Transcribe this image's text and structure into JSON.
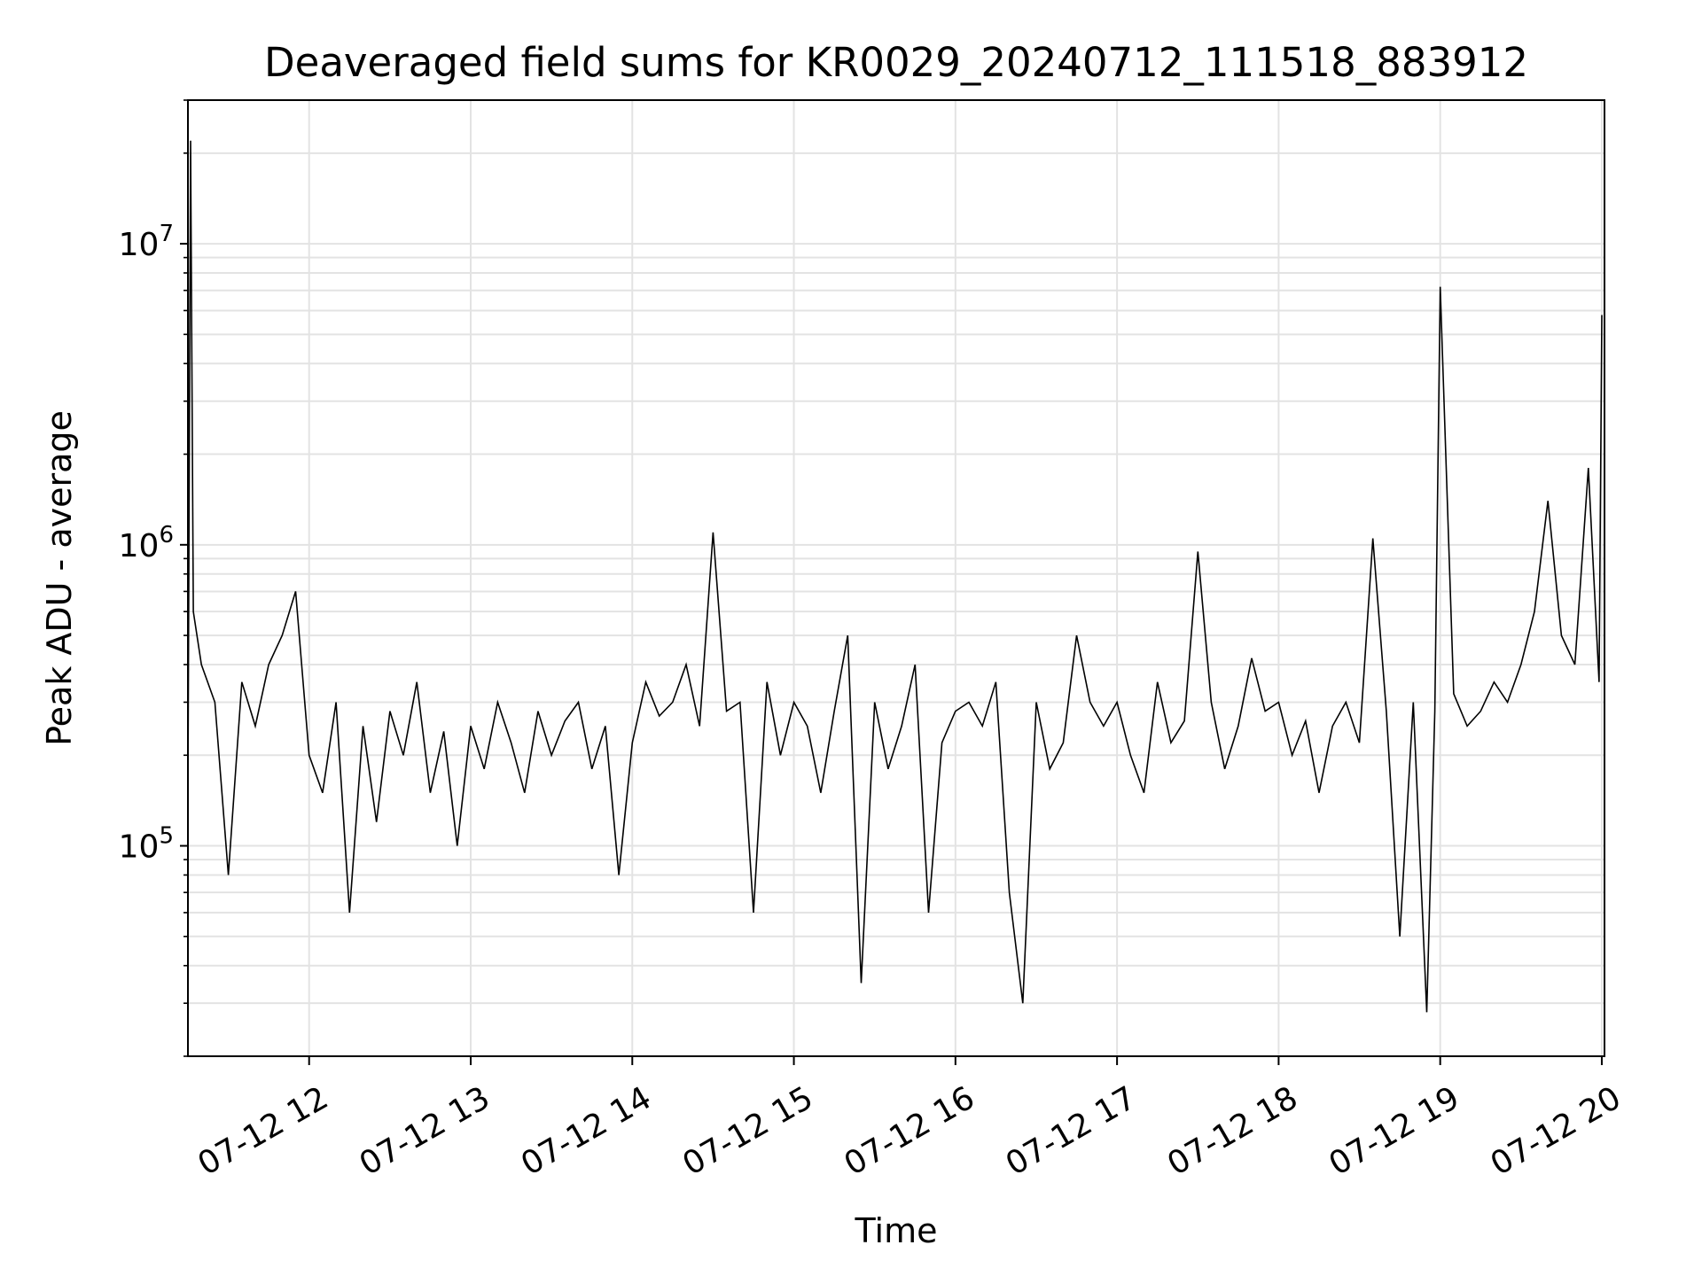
{
  "chart_data": {
    "type": "line",
    "title": "Deaveraged field sums for KR0029_20240712_111518_883912",
    "xlabel": "Time",
    "ylabel": "Peak ADU - average",
    "y_scale": "log",
    "ylim": [
      20000,
      30000000
    ],
    "xlim": [
      "2024-07-12 11:15",
      "2024-07-12 20:01"
    ],
    "grid": true,
    "x_ticks": [
      {
        "time": "2024-07-12 12:00",
        "label": "07-12 12"
      },
      {
        "time": "2024-07-12 13:00",
        "label": "07-12 13"
      },
      {
        "time": "2024-07-12 14:00",
        "label": "07-12 14"
      },
      {
        "time": "2024-07-12 15:00",
        "label": "07-12 15"
      },
      {
        "time": "2024-07-12 16:00",
        "label": "07-12 16"
      },
      {
        "time": "2024-07-12 17:00",
        "label": "07-12 17"
      },
      {
        "time": "2024-07-12 18:00",
        "label": "07-12 18"
      },
      {
        "time": "2024-07-12 19:00",
        "label": "07-12 19"
      },
      {
        "time": "2024-07-12 20:00",
        "label": "07-12 20"
      }
    ],
    "y_ticks": [
      {
        "value": 100000,
        "base": "10",
        "exp": "5"
      },
      {
        "value": 1000000,
        "base": "10",
        "exp": "6"
      },
      {
        "value": 10000000,
        "base": "10",
        "exp": "7"
      }
    ],
    "series": [
      {
        "color": "#000000",
        "x": [
          "2024-07-12 11:15",
          "2024-07-12 11:16",
          "2024-07-12 11:17",
          "2024-07-12 11:20",
          "2024-07-12 11:25",
          "2024-07-12 11:30",
          "2024-07-12 11:35",
          "2024-07-12 11:40",
          "2024-07-12 11:45",
          "2024-07-12 11:50",
          "2024-07-12 11:55",
          "2024-07-12 12:00",
          "2024-07-12 12:05",
          "2024-07-12 12:10",
          "2024-07-12 12:15",
          "2024-07-12 12:20",
          "2024-07-12 12:25",
          "2024-07-12 12:30",
          "2024-07-12 12:35",
          "2024-07-12 12:40",
          "2024-07-12 12:45",
          "2024-07-12 12:50",
          "2024-07-12 12:55",
          "2024-07-12 13:00",
          "2024-07-12 13:05",
          "2024-07-12 13:10",
          "2024-07-12 13:15",
          "2024-07-12 13:20",
          "2024-07-12 13:25",
          "2024-07-12 13:30",
          "2024-07-12 13:35",
          "2024-07-12 13:40",
          "2024-07-12 13:45",
          "2024-07-12 13:50",
          "2024-07-12 13:55",
          "2024-07-12 14:00",
          "2024-07-12 14:05",
          "2024-07-12 14:10",
          "2024-07-12 14:15",
          "2024-07-12 14:20",
          "2024-07-12 14:25",
          "2024-07-12 14:30",
          "2024-07-12 14:35",
          "2024-07-12 14:40",
          "2024-07-12 14:45",
          "2024-07-12 14:50",
          "2024-07-12 14:55",
          "2024-07-12 15:00",
          "2024-07-12 15:05",
          "2024-07-12 15:10",
          "2024-07-12 15:15",
          "2024-07-12 15:20",
          "2024-07-12 15:25",
          "2024-07-12 15:30",
          "2024-07-12 15:35",
          "2024-07-12 15:40",
          "2024-07-12 15:45",
          "2024-07-12 15:50",
          "2024-07-12 15:55",
          "2024-07-12 16:00",
          "2024-07-12 16:05",
          "2024-07-12 16:10",
          "2024-07-12 16:15",
          "2024-07-12 16:20",
          "2024-07-12 16:25",
          "2024-07-12 16:30",
          "2024-07-12 16:35",
          "2024-07-12 16:40",
          "2024-07-12 16:45",
          "2024-07-12 16:50",
          "2024-07-12 16:55",
          "2024-07-12 17:00",
          "2024-07-12 17:05",
          "2024-07-12 17:10",
          "2024-07-12 17:15",
          "2024-07-12 17:20",
          "2024-07-12 17:25",
          "2024-07-12 17:30",
          "2024-07-12 17:35",
          "2024-07-12 17:40",
          "2024-07-12 17:45",
          "2024-07-12 17:50",
          "2024-07-12 17:55",
          "2024-07-12 18:00",
          "2024-07-12 18:05",
          "2024-07-12 18:10",
          "2024-07-12 18:15",
          "2024-07-12 18:20",
          "2024-07-12 18:25",
          "2024-07-12 18:30",
          "2024-07-12 18:35",
          "2024-07-12 18:40",
          "2024-07-12 18:45",
          "2024-07-12 18:50",
          "2024-07-12 18:55",
          "2024-07-12 18:58",
          "2024-07-12 19:00",
          "2024-07-12 19:05",
          "2024-07-12 19:10",
          "2024-07-12 19:15",
          "2024-07-12 19:20",
          "2024-07-12 19:25",
          "2024-07-12 19:30",
          "2024-07-12 19:35",
          "2024-07-12 19:40",
          "2024-07-12 19:45",
          "2024-07-12 19:50",
          "2024-07-12 19:55",
          "2024-07-12 19:59",
          "2024-07-12 20:00"
        ],
        "y": [
          150000,
          22000000,
          600000,
          400000,
          300000,
          80000,
          350000,
          250000,
          400000,
          500000,
          700000,
          200000,
          150000,
          300000,
          60000,
          250000,
          120000,
          280000,
          200000,
          350000,
          150000,
          240000,
          100000,
          250000,
          180000,
          300000,
          220000,
          150000,
          280000,
          200000,
          260000,
          300000,
          180000,
          250000,
          80000,
          220000,
          350000,
          270000,
          300000,
          400000,
          250000,
          1100000,
          280000,
          300000,
          60000,
          350000,
          200000,
          300000,
          250000,
          150000,
          280000,
          500000,
          35000,
          300000,
          180000,
          250000,
          400000,
          60000,
          220000,
          280000,
          300000,
          250000,
          350000,
          70000,
          30000,
          300000,
          180000,
          220000,
          500000,
          300000,
          250000,
          300000,
          200000,
          150000,
          350000,
          220000,
          260000,
          950000,
          300000,
          180000,
          250000,
          420000,
          280000,
          300000,
          200000,
          260000,
          150000,
          250000,
          300000,
          220000,
          1050000,
          280000,
          50000,
          300000,
          28000,
          280000,
          7200000,
          320000,
          250000,
          280000,
          350000,
          300000,
          400000,
          600000,
          1400000,
          500000,
          400000,
          1800000,
          350000,
          5800000
        ]
      }
    ]
  }
}
